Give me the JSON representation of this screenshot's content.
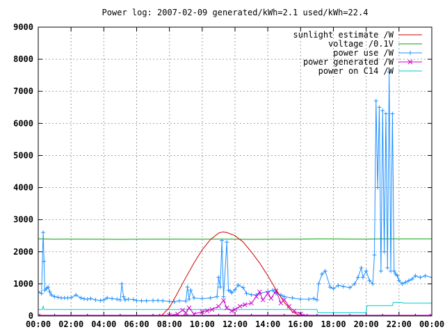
{
  "chart_data": {
    "type": "line",
    "title": "Power log: 2007-02-09 generated/kWh=2.1 used/kWh=22.4",
    "xlabel": "",
    "ylabel": "",
    "xlim": [
      0,
      24
    ],
    "ylim": [
      0,
      9000
    ],
    "x_tick_labels": [
      "00:00",
      "02:00",
      "04:00",
      "06:00",
      "08:00",
      "10:00",
      "12:00",
      "14:00",
      "16:00",
      "18:00",
      "20:00",
      "22:00",
      "00:00"
    ],
    "y_ticks": [
      0,
      1000,
      2000,
      3000,
      4000,
      5000,
      6000,
      7000,
      8000,
      9000
    ],
    "grid": true,
    "legend_position": "top-right",
    "series": [
      {
        "name": "sunlight estimate /W",
        "color": "#cc0000",
        "style": "line",
        "x": [
          7.5,
          8.0,
          8.5,
          9.0,
          9.5,
          10.0,
          10.5,
          11.0,
          11.25,
          11.5,
          12.0,
          12.5,
          13.0,
          13.5,
          14.0,
          14.5,
          15.0,
          15.5,
          16.0,
          16.3
        ],
        "values": [
          0,
          260,
          720,
          1200,
          1650,
          2060,
          2380,
          2580,
          2620,
          2600,
          2500,
          2300,
          1990,
          1650,
          1250,
          820,
          420,
          130,
          0,
          0
        ]
      },
      {
        "name": "voltage /0.1V",
        "color": "#00a000",
        "style": "line",
        "x": [
          0,
          1,
          2,
          3,
          4,
          5,
          6,
          7,
          8,
          9,
          10,
          11,
          12,
          13,
          14,
          15,
          16,
          17,
          18,
          19,
          20,
          21,
          22,
          23,
          24
        ],
        "values": [
          2400,
          2390,
          2395,
          2390,
          2390,
          2385,
          2390,
          2390,
          2395,
          2390,
          2390,
          2395,
          2390,
          2385,
          2390,
          2390,
          2395,
          2400,
          2400,
          2395,
          2395,
          2400,
          2400,
          2400,
          2400
        ]
      },
      {
        "name": "power use /W",
        "color": "#1e90ff",
        "style": "line-plus",
        "x": [
          0.0,
          0.2,
          0.3,
          0.35,
          0.4,
          0.5,
          0.6,
          0.7,
          0.8,
          1.0,
          1.2,
          1.4,
          1.6,
          1.8,
          2.0,
          2.3,
          2.6,
          2.8,
          3.0,
          3.2,
          3.5,
          3.8,
          4.0,
          4.2,
          4.5,
          4.8,
          5.0,
          5.1,
          5.2,
          5.3,
          5.5,
          5.8,
          6.0,
          6.3,
          6.6,
          7.0,
          7.3,
          7.6,
          8.0,
          8.3,
          8.6,
          9.0,
          9.1,
          9.2,
          9.3,
          9.5,
          10.0,
          10.5,
          10.9,
          11.0,
          11.1,
          11.2,
          11.3,
          11.5,
          11.6,
          11.7,
          11.8,
          12.0,
          12.2,
          12.5,
          12.7,
          13.0,
          13.3,
          13.5,
          14.0,
          14.3,
          14.5,
          14.8,
          15.0,
          15.5,
          16.0,
          16.5,
          16.8,
          17.0,
          17.1,
          17.3,
          17.5,
          17.8,
          18.0,
          18.3,
          18.6,
          19.0,
          19.3,
          19.5,
          19.7,
          19.8,
          20.0,
          20.2,
          20.4,
          20.5,
          20.6,
          20.7,
          20.8,
          20.9,
          21.0,
          21.1,
          21.2,
          21.3,
          21.4,
          21.5,
          21.6,
          21.7,
          21.8,
          21.9,
          22.0,
          22.2,
          22.4,
          22.6,
          22.8,
          23.0,
          23.3,
          23.6,
          24.0
        ],
        "values": [
          750,
          700,
          2600,
          1700,
          800,
          850,
          900,
          750,
          650,
          600,
          580,
          560,
          560,
          560,
          570,
          650,
          560,
          530,
          520,
          540,
          500,
          480,
          500,
          560,
          540,
          520,
          500,
          1000,
          600,
          500,
          520,
          510,
          480,
          470,
          470,
          480,
          480,
          470,
          450,
          440,
          470,
          460,
          900,
          520,
          800,
          560,
          540,
          560,
          600,
          1200,
          900,
          2350,
          600,
          2300,
          800,
          780,
          720,
          820,
          960,
          880,
          700,
          660,
          650,
          700,
          760,
          800,
          700,
          650,
          600,
          560,
          520,
          520,
          540,
          500,
          1000,
          1300,
          1400,
          900,
          850,
          950,
          920,
          880,
          1000,
          1200,
          1500,
          1200,
          1400,
          1100,
          1000,
          1900,
          6700,
          4000,
          6500,
          1400,
          6400,
          2000,
          6300,
          1500,
          7600,
          1400,
          6300,
          1400,
          1300,
          1250,
          1100,
          1000,
          1050,
          1100,
          1150,
          1250,
          1200,
          1250,
          1200
        ]
      },
      {
        "name": "power generated /W",
        "color": "#cc00cc",
        "style": "line-x",
        "x": [
          0,
          7.5,
          8.0,
          8.5,
          8.8,
          9.0,
          9.2,
          9.5,
          10.0,
          10.3,
          10.6,
          11.0,
          11.3,
          11.5,
          11.8,
          12.0,
          12.3,
          12.6,
          13.0,
          13.3,
          13.5,
          13.7,
          14.0,
          14.2,
          14.5,
          14.8,
          15.0,
          15.3,
          15.6,
          16.0,
          16.3,
          24
        ],
        "values": [
          0,
          0,
          20,
          60,
          180,
          100,
          250,
          60,
          130,
          160,
          200,
          300,
          480,
          250,
          150,
          200,
          300,
          350,
          400,
          600,
          750,
          500,
          700,
          550,
          780,
          400,
          500,
          300,
          150,
          60,
          0,
          0
        ]
      },
      {
        "name": "power on C14 /W",
        "color": "#00cccc",
        "style": "line",
        "x": [
          0,
          0.25,
          0.3,
          0.35,
          0.4,
          17.0,
          17.05,
          20.0,
          20.05,
          21.6,
          21.65,
          22.2,
          22.25,
          24
        ],
        "values": [
          200,
          200,
          300,
          200,
          200,
          200,
          100,
          100,
          320,
          320,
          420,
          420,
          400,
          400
        ]
      }
    ]
  }
}
